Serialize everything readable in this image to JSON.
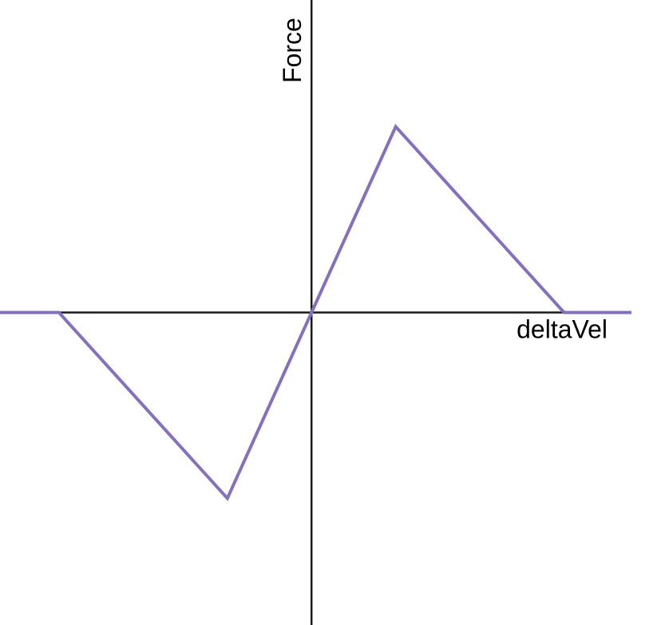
{
  "chart_data": {
    "type": "line",
    "title": "",
    "xlabel": "deltaVel",
    "ylabel": "Force",
    "grid": false,
    "xlim": [
      -3.7,
      3.8
    ],
    "ylim": [
      -3.7,
      3.7
    ],
    "series": [
      {
        "color": "#8470bd",
        "x": [
          -3.7,
          -3,
          -1,
          1,
          3,
          3.8
        ],
        "y": [
          0,
          0,
          -2.2,
          2.2,
          0,
          0
        ]
      }
    ]
  }
}
